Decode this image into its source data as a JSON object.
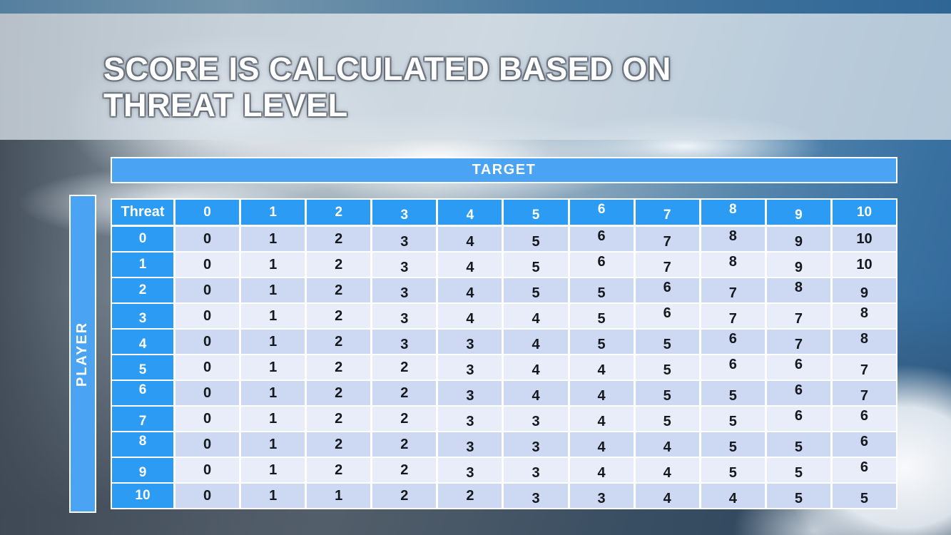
{
  "slide": {
    "title_line1": "SCORE IS CALCULATED BASED ON",
    "title_line2": "THREAT LEVEL"
  },
  "matrix": {
    "target_label": "TARGET",
    "player_label": "PLAYER",
    "corner_label": "Threat",
    "column_headers": [
      "0",
      "1",
      "2",
      "3",
      "4",
      "5",
      "6",
      "7",
      "8",
      "9",
      "10"
    ],
    "row_headers": [
      "0",
      "1",
      "2",
      "3",
      "4",
      "5",
      "6",
      "7",
      "8",
      "9",
      "10"
    ],
    "rows": [
      [
        0,
        1,
        2,
        3,
        4,
        5,
        6,
        7,
        8,
        9,
        10
      ],
      [
        0,
        1,
        2,
        3,
        4,
        5,
        6,
        7,
        8,
        9,
        10
      ],
      [
        0,
        1,
        2,
        3,
        4,
        5,
        5,
        6,
        7,
        8,
        9
      ],
      [
        0,
        1,
        2,
        3,
        4,
        4,
        5,
        6,
        7,
        7,
        8
      ],
      [
        0,
        1,
        2,
        3,
        3,
        4,
        5,
        5,
        6,
        7,
        8
      ],
      [
        0,
        1,
        2,
        2,
        3,
        4,
        4,
        5,
        6,
        6,
        7
      ],
      [
        0,
        1,
        2,
        2,
        3,
        4,
        4,
        5,
        5,
        6,
        7
      ],
      [
        0,
        1,
        2,
        2,
        3,
        3,
        4,
        5,
        5,
        6,
        6
      ],
      [
        0,
        1,
        2,
        2,
        3,
        3,
        4,
        4,
        5,
        5,
        6
      ],
      [
        0,
        1,
        2,
        2,
        3,
        3,
        4,
        4,
        5,
        5,
        6
      ],
      [
        0,
        1,
        1,
        2,
        2,
        3,
        3,
        4,
        4,
        5,
        5
      ]
    ]
  },
  "colors": {
    "header_blue": "#2b9bf4",
    "band_blue": "#4aa3f3",
    "row_dark": "#cdd8f2",
    "row_light": "#e9edf9",
    "separator_white": "#ffffff",
    "title_text": "#ffffff",
    "body_text": "#15181c"
  }
}
